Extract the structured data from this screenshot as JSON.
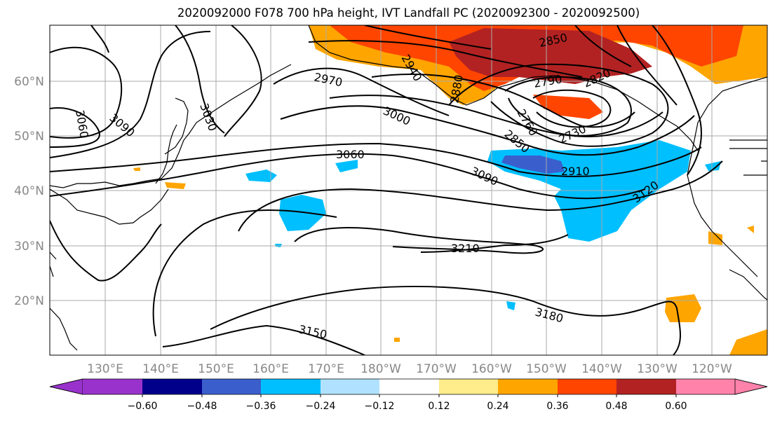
{
  "title": "2020092000 F078 700 hPa height, IVT Landfall PC (2020092300 - 2020092500)",
  "map": {
    "lat_labels": [
      "60°N",
      "50°N",
      "40°N",
      "30°N",
      "20°N"
    ],
    "lon_labels": [
      "130°E",
      "140°E",
      "150°E",
      "160°E",
      "170°E",
      "180°W",
      "170°W",
      "160°W",
      "150°W",
      "140°W",
      "130°W",
      "120°W"
    ],
    "contour_labels": [
      "2970",
      "3030",
      "3060",
      "3090",
      "3000",
      "2940",
      "2880",
      "2850",
      "2790",
      "2820",
      "2760",
      "2730",
      "2850",
      "2910",
      "3060",
      "3090",
      "3120",
      "3210",
      "3180",
      "3150"
    ],
    "colors": {
      "land_outline": "#000000",
      "grid": "#aaaaaa",
      "positive_low": "#ffe680",
      "positive_mid": "#ffa500",
      "positive_high": "#ff4500",
      "positive_max": "#b22222",
      "negative_low": "#00bfff",
      "negative_mid": "#3a5fcd"
    }
  },
  "colorbar": {
    "ticks": [
      "−0.60",
      "−0.48",
      "−0.36",
      "−0.24",
      "−0.12",
      "0.12",
      "0.24",
      "0.36",
      "0.48",
      "0.60"
    ],
    "colors": [
      "#9932cc",
      "#00008b",
      "#3a5fcd",
      "#00bfff",
      "#b0e2ff",
      "#ffffff",
      "#ffec8b",
      "#ffa500",
      "#ff4500",
      "#b22222",
      "#ff82ab"
    ]
  }
}
